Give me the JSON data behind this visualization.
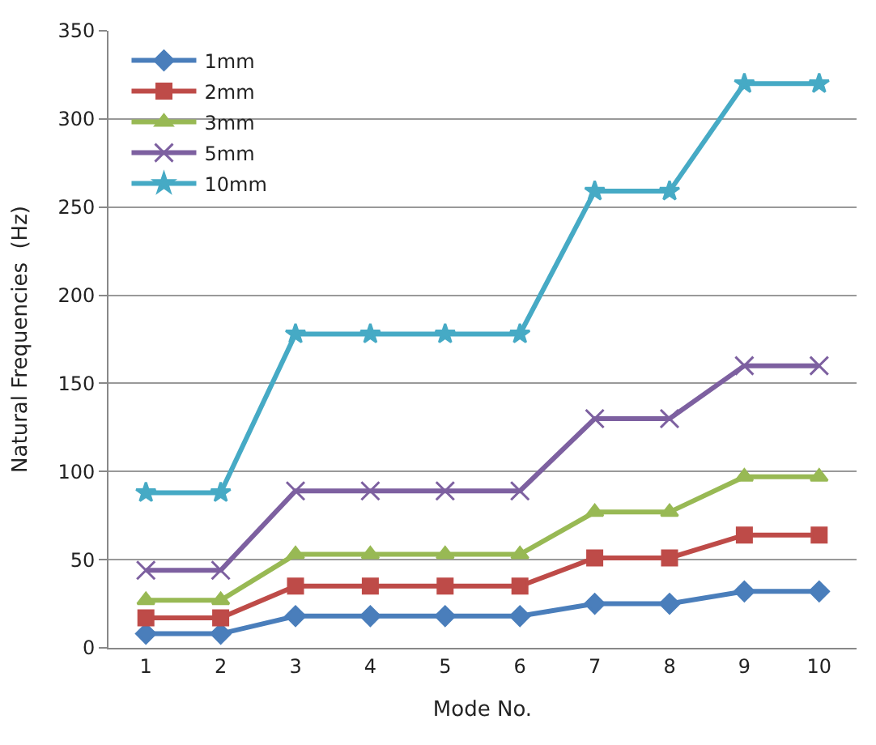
{
  "chart_data": {
    "type": "line",
    "xlabel": "Mode No.",
    "ylabel": "Natural Frequencies  (Hz)",
    "categories": [
      "1",
      "2",
      "3",
      "4",
      "5",
      "6",
      "7",
      "8",
      "9",
      "10"
    ],
    "series": [
      {
        "name": "1mm",
        "color": "#4a7ebb",
        "marker": "diamond",
        "values": [
          8,
          8,
          18,
          18,
          18,
          18,
          25,
          25,
          32,
          32
        ]
      },
      {
        "name": "2mm",
        "color": "#be4b48",
        "marker": "square",
        "values": [
          17,
          17,
          35,
          35,
          35,
          35,
          51,
          51,
          64,
          64
        ]
      },
      {
        "name": "3mm",
        "color": "#98b954",
        "marker": "triangle",
        "values": [
          27,
          27,
          53,
          53,
          53,
          53,
          77,
          77,
          97,
          97
        ]
      },
      {
        "name": "5mm",
        "color": "#7d60a0",
        "marker": "cross",
        "values": [
          44,
          44,
          89,
          89,
          89,
          89,
          130,
          130,
          160,
          160
        ]
      },
      {
        "name": "10mm",
        "color": "#46aac5",
        "marker": "star",
        "values": [
          88,
          88,
          178,
          178,
          178,
          178,
          259,
          259,
          320,
          320
        ]
      }
    ],
    "ylim": [
      0,
      350
    ],
    "yticks": [
      0,
      50,
      100,
      150,
      200,
      250,
      300,
      350
    ],
    "grid": "y",
    "legend": "top left",
    "line_style": "solid"
  }
}
